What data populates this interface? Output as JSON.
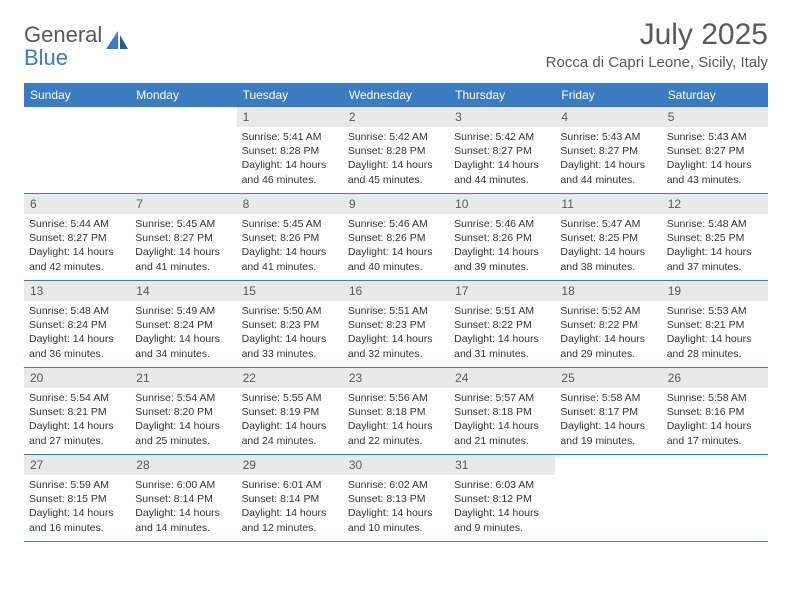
{
  "logo": {
    "text_gray": "General",
    "text_blue": "Blue"
  },
  "title": "July 2025",
  "location": "Rocca di Capri Leone, Sicily, Italy",
  "colors": {
    "header_blue": "#3b7bbf",
    "daynum_bg": "#e9e9e9",
    "text_gray": "#595959",
    "body_text": "#333333",
    "white": "#ffffff"
  },
  "fonts": {
    "title_size": 30,
    "location_size": 15,
    "dow_size": 12,
    "daynum_size": 12,
    "cell_size": 10.5
  },
  "days_of_week": [
    "Sunday",
    "Monday",
    "Tuesday",
    "Wednesday",
    "Thursday",
    "Friday",
    "Saturday"
  ],
  "weeks": [
    [
      null,
      null,
      {
        "num": "1",
        "sunrise": "Sunrise: 5:41 AM",
        "sunset": "Sunset: 8:28 PM",
        "daylight": "Daylight: 14 hours and 46 minutes."
      },
      {
        "num": "2",
        "sunrise": "Sunrise: 5:42 AM",
        "sunset": "Sunset: 8:28 PM",
        "daylight": "Daylight: 14 hours and 45 minutes."
      },
      {
        "num": "3",
        "sunrise": "Sunrise: 5:42 AM",
        "sunset": "Sunset: 8:27 PM",
        "daylight": "Daylight: 14 hours and 44 minutes."
      },
      {
        "num": "4",
        "sunrise": "Sunrise: 5:43 AM",
        "sunset": "Sunset: 8:27 PM",
        "daylight": "Daylight: 14 hours and 44 minutes."
      },
      {
        "num": "5",
        "sunrise": "Sunrise: 5:43 AM",
        "sunset": "Sunset: 8:27 PM",
        "daylight": "Daylight: 14 hours and 43 minutes."
      }
    ],
    [
      {
        "num": "6",
        "sunrise": "Sunrise: 5:44 AM",
        "sunset": "Sunset: 8:27 PM",
        "daylight": "Daylight: 14 hours and 42 minutes."
      },
      {
        "num": "7",
        "sunrise": "Sunrise: 5:45 AM",
        "sunset": "Sunset: 8:27 PM",
        "daylight": "Daylight: 14 hours and 41 minutes."
      },
      {
        "num": "8",
        "sunrise": "Sunrise: 5:45 AM",
        "sunset": "Sunset: 8:26 PM",
        "daylight": "Daylight: 14 hours and 41 minutes."
      },
      {
        "num": "9",
        "sunrise": "Sunrise: 5:46 AM",
        "sunset": "Sunset: 8:26 PM",
        "daylight": "Daylight: 14 hours and 40 minutes."
      },
      {
        "num": "10",
        "sunrise": "Sunrise: 5:46 AM",
        "sunset": "Sunset: 8:26 PM",
        "daylight": "Daylight: 14 hours and 39 minutes."
      },
      {
        "num": "11",
        "sunrise": "Sunrise: 5:47 AM",
        "sunset": "Sunset: 8:25 PM",
        "daylight": "Daylight: 14 hours and 38 minutes."
      },
      {
        "num": "12",
        "sunrise": "Sunrise: 5:48 AM",
        "sunset": "Sunset: 8:25 PM",
        "daylight": "Daylight: 14 hours and 37 minutes."
      }
    ],
    [
      {
        "num": "13",
        "sunrise": "Sunrise: 5:48 AM",
        "sunset": "Sunset: 8:24 PM",
        "daylight": "Daylight: 14 hours and 36 minutes."
      },
      {
        "num": "14",
        "sunrise": "Sunrise: 5:49 AM",
        "sunset": "Sunset: 8:24 PM",
        "daylight": "Daylight: 14 hours and 34 minutes."
      },
      {
        "num": "15",
        "sunrise": "Sunrise: 5:50 AM",
        "sunset": "Sunset: 8:23 PM",
        "daylight": "Daylight: 14 hours and 33 minutes."
      },
      {
        "num": "16",
        "sunrise": "Sunrise: 5:51 AM",
        "sunset": "Sunset: 8:23 PM",
        "daylight": "Daylight: 14 hours and 32 minutes."
      },
      {
        "num": "17",
        "sunrise": "Sunrise: 5:51 AM",
        "sunset": "Sunset: 8:22 PM",
        "daylight": "Daylight: 14 hours and 31 minutes."
      },
      {
        "num": "18",
        "sunrise": "Sunrise: 5:52 AM",
        "sunset": "Sunset: 8:22 PM",
        "daylight": "Daylight: 14 hours and 29 minutes."
      },
      {
        "num": "19",
        "sunrise": "Sunrise: 5:53 AM",
        "sunset": "Sunset: 8:21 PM",
        "daylight": "Daylight: 14 hours and 28 minutes."
      }
    ],
    [
      {
        "num": "20",
        "sunrise": "Sunrise: 5:54 AM",
        "sunset": "Sunset: 8:21 PM",
        "daylight": "Daylight: 14 hours and 27 minutes."
      },
      {
        "num": "21",
        "sunrise": "Sunrise: 5:54 AM",
        "sunset": "Sunset: 8:20 PM",
        "daylight": "Daylight: 14 hours and 25 minutes."
      },
      {
        "num": "22",
        "sunrise": "Sunrise: 5:55 AM",
        "sunset": "Sunset: 8:19 PM",
        "daylight": "Daylight: 14 hours and 24 minutes."
      },
      {
        "num": "23",
        "sunrise": "Sunrise: 5:56 AM",
        "sunset": "Sunset: 8:18 PM",
        "daylight": "Daylight: 14 hours and 22 minutes."
      },
      {
        "num": "24",
        "sunrise": "Sunrise: 5:57 AM",
        "sunset": "Sunset: 8:18 PM",
        "daylight": "Daylight: 14 hours and 21 minutes."
      },
      {
        "num": "25",
        "sunrise": "Sunrise: 5:58 AM",
        "sunset": "Sunset: 8:17 PM",
        "daylight": "Daylight: 14 hours and 19 minutes."
      },
      {
        "num": "26",
        "sunrise": "Sunrise: 5:58 AM",
        "sunset": "Sunset: 8:16 PM",
        "daylight": "Daylight: 14 hours and 17 minutes."
      }
    ],
    [
      {
        "num": "27",
        "sunrise": "Sunrise: 5:59 AM",
        "sunset": "Sunset: 8:15 PM",
        "daylight": "Daylight: 14 hours and 16 minutes."
      },
      {
        "num": "28",
        "sunrise": "Sunrise: 6:00 AM",
        "sunset": "Sunset: 8:14 PM",
        "daylight": "Daylight: 14 hours and 14 minutes."
      },
      {
        "num": "29",
        "sunrise": "Sunrise: 6:01 AM",
        "sunset": "Sunset: 8:14 PM",
        "daylight": "Daylight: 14 hours and 12 minutes."
      },
      {
        "num": "30",
        "sunrise": "Sunrise: 6:02 AM",
        "sunset": "Sunset: 8:13 PM",
        "daylight": "Daylight: 14 hours and 10 minutes."
      },
      {
        "num": "31",
        "sunrise": "Sunrise: 6:03 AM",
        "sunset": "Sunset: 8:12 PM",
        "daylight": "Daylight: 14 hours and 9 minutes."
      },
      null,
      null
    ]
  ]
}
